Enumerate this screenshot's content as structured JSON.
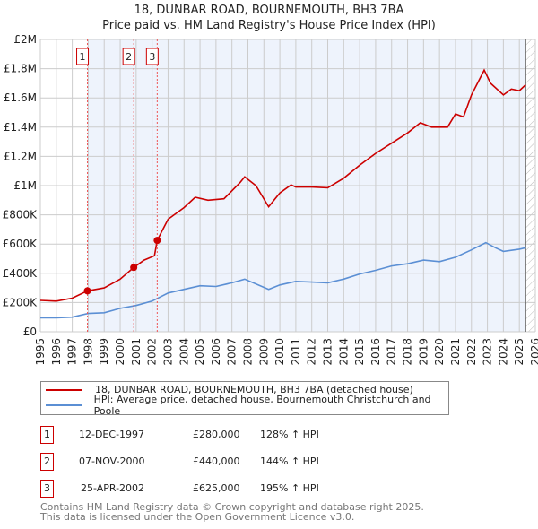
{
  "chart_data": {
    "type": "line",
    "title": "18, DUNBAR ROAD, BOURNEMOUTH, BH3 7BA",
    "subtitle": "Price paid vs. HM Land Registry's House Price Index (HPI)",
    "xlim": [
      1995,
      2026
    ],
    "ylim": [
      0,
      2000000
    ],
    "x_ticks": [
      "1995",
      "1996",
      "1997",
      "1998",
      "1999",
      "2000",
      "2001",
      "2002",
      "2003",
      "2004",
      "2005",
      "2006",
      "2007",
      "2008",
      "2009",
      "2010",
      "2011",
      "2012",
      "2013",
      "2014",
      "2015",
      "2016",
      "2017",
      "2018",
      "2019",
      "2020",
      "2021",
      "2022",
      "2023",
      "2024",
      "2025",
      "2026"
    ],
    "y_ticks": [
      {
        "v": 0,
        "l": "£0"
      },
      {
        "v": 200000,
        "l": "£200K"
      },
      {
        "v": 400000,
        "l": "£400K"
      },
      {
        "v": 600000,
        "l": "£600K"
      },
      {
        "v": 800000,
        "l": "£800K"
      },
      {
        "v": 1000000,
        "l": "£1M"
      },
      {
        "v": 1200000,
        "l": "£1.2M"
      },
      {
        "v": 1400000,
        "l": "£1.4M"
      },
      {
        "v": 1600000,
        "l": "£1.6M"
      },
      {
        "v": 1800000,
        "l": "£1.8M"
      },
      {
        "v": 2000000,
        "l": "£2M"
      }
    ],
    "grid": true,
    "legend_placement": "below",
    "series": [
      {
        "name": "18, DUNBAR ROAD, BOURNEMOUTH, BH3 7BA (detached house)",
        "color": "#cc0000",
        "x": [
          1995,
          1996,
          1997,
          1997.95,
          1999,
          2000,
          2000.85,
          2001.5,
          2002.15,
          2002.32,
          2003,
          2004,
          2004.7,
          2005.5,
          2006.5,
          2007.5,
          2007.8,
          2008.5,
          2009.3,
          2010,
          2010.7,
          2011,
          2012,
          2013,
          2014,
          2015,
          2016,
          2017,
          2018,
          2018.8,
          2019.5,
          2020.5,
          2021,
          2021.5,
          2022,
          2022.8,
          2023.2,
          2024,
          2024.5,
          2025,
          2025.4
        ],
        "y": [
          215000,
          210000,
          230000,
          280000,
          300000,
          360000,
          440000,
          490000,
          520000,
          625000,
          770000,
          850000,
          920000,
          900000,
          910000,
          1020000,
          1060000,
          1000000,
          855000,
          950000,
          1005000,
          990000,
          990000,
          985000,
          1050000,
          1140000,
          1220000,
          1290000,
          1360000,
          1430000,
          1400000,
          1400000,
          1490000,
          1470000,
          1620000,
          1790000,
          1700000,
          1620000,
          1660000,
          1650000,
          1690000
        ]
      },
      {
        "name": "HPI: Average price, detached house, Bournemouth Christchurch and Poole",
        "color": "#5b8fd4",
        "x": [
          1995,
          1996,
          1997,
          1998,
          1999,
          2000,
          2001,
          2002,
          2003,
          2004,
          2005,
          2006,
          2007,
          2007.8,
          2009.3,
          2010,
          2011,
          2012,
          2013,
          2014,
          2015,
          2016,
          2017,
          2018,
          2019,
          2020,
          2021,
          2022,
          2022.9,
          2023.5,
          2024,
          2025,
          2025.4
        ],
        "y": [
          95000,
          95000,
          100000,
          125000,
          130000,
          160000,
          180000,
          210000,
          265000,
          290000,
          315000,
          310000,
          335000,
          360000,
          290000,
          320000,
          345000,
          340000,
          335000,
          360000,
          395000,
          420000,
          450000,
          465000,
          490000,
          480000,
          510000,
          560000,
          610000,
          575000,
          550000,
          565000,
          575000
        ]
      }
    ],
    "sales": [
      {
        "n": "1",
        "x": 1997.95,
        "y": 280000,
        "date": "12-DEC-1997",
        "price": "£280,000",
        "hpi": "128% ↑ HPI"
      },
      {
        "n": "2",
        "x": 2000.85,
        "y": 440000,
        "date": "07-NOV-2000",
        "price": "£440,000",
        "hpi": "144% ↑ HPI"
      },
      {
        "n": "3",
        "x": 2002.32,
        "y": 625000,
        "date": "25-APR-2002",
        "price": "£625,000",
        "hpi": "195% ↑ HPI"
      }
    ],
    "shaded_from": 1997.95,
    "hatched_from": 2025.4
  },
  "footer": {
    "line1": "Contains HM Land Registry data © Crown copyright and database right 2025.",
    "line2": "This data is licensed under the Open Government Licence v3.0."
  }
}
